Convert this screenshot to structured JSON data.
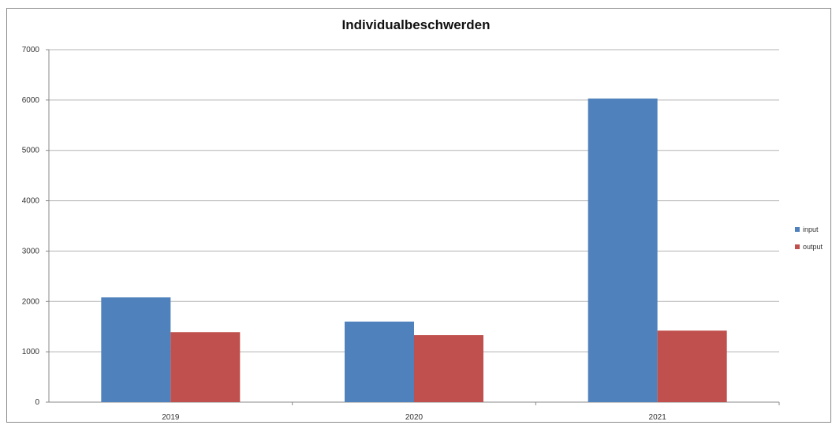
{
  "chart_data": {
    "type": "bar",
    "title": "Individualbeschwerden",
    "xlabel": "",
    "ylabel": "",
    "categories": [
      "2019",
      "2020",
      "2021"
    ],
    "series": [
      {
        "name": "input",
        "color": "#4F81BD",
        "values": [
          2080,
          1600,
          6030
        ]
      },
      {
        "name": "output",
        "color": "#C0504D",
        "values": [
          1390,
          1330,
          1420
        ]
      }
    ],
    "ylim": [
      0,
      7000
    ],
    "yticks": [
      "0",
      "1000",
      "2000",
      "3000",
      "4000",
      "5000",
      "6000",
      "7000"
    ],
    "grid": true,
    "legend": "right"
  }
}
